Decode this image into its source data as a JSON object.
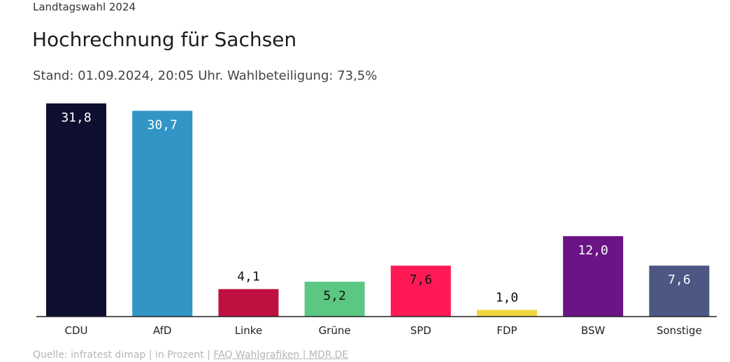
{
  "header": {
    "kicker": "Landtagswahl 2024",
    "title": "Hochrechnung für Sachsen",
    "subtitle": "Stand: 01.09.2024, 20:05 Uhr. Wahlbeteiligung: 73,5%"
  },
  "footer": {
    "source": "Quelle: infratest dimap | in Prozent |",
    "link": "FAQ Wahlgrafiken | MDR.DE"
  },
  "chart_data": {
    "type": "bar",
    "title": "Hochrechnung für Sachsen",
    "categories": [
      "CDU",
      "AfD",
      "Linke",
      "Grüne",
      "SPD",
      "FDP",
      "BSW",
      "Sonstige"
    ],
    "values": [
      31.8,
      30.7,
      4.1,
      5.2,
      7.6,
      1.0,
      12.0,
      7.6
    ],
    "value_labels": [
      "31,8",
      "30,7",
      "4,1",
      "5,2",
      "7,6",
      "1,0",
      "12,0",
      "7,6"
    ],
    "colors": [
      "#0e0e31",
      "#3196c6",
      "#bf1140",
      "#5bc783",
      "#ff1a56",
      "#f0d540",
      "#6a1485",
      "#4c5783"
    ],
    "label_colors": [
      "#ffffff",
      "#ffffff",
      "#ffffff",
      "#111111",
      "#111111",
      "#111111",
      "#ffffff",
      "#ffffff"
    ],
    "ylim": [
      0,
      31.8
    ],
    "xlabel": "",
    "ylabel": "",
    "grid": false,
    "legend": "none"
  }
}
